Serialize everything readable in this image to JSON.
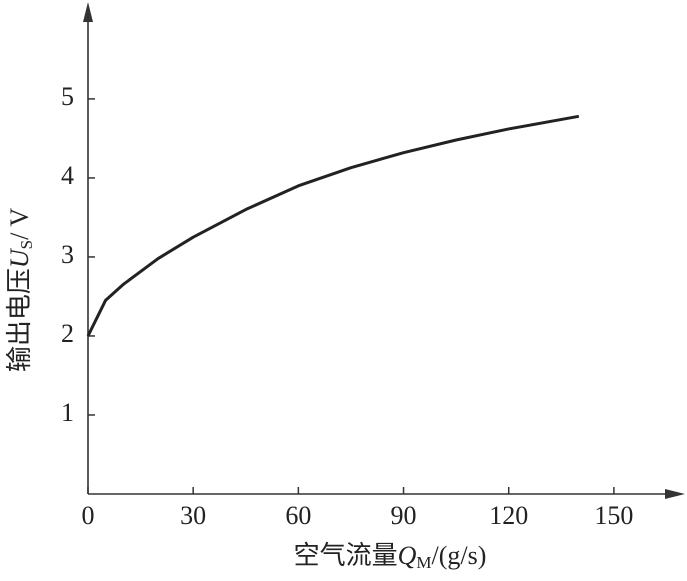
{
  "chart_data": {
    "type": "line",
    "xlabel": {
      "text": "空气流量",
      "symbol": "Q",
      "subscript": "M",
      "unit": "/(g/s)"
    },
    "ylabel": {
      "text": "输出电压",
      "symbol": "U",
      "subscript": "S",
      "unit": "/ V"
    },
    "x": [
      0,
      5,
      10,
      20,
      30,
      45,
      60,
      75,
      90,
      105,
      120,
      140
    ],
    "values": [
      2.0,
      2.45,
      2.65,
      2.98,
      3.25,
      3.6,
      3.9,
      4.13,
      4.32,
      4.48,
      4.62,
      4.78
    ],
    "color": "#222222",
    "xlim": [
      0,
      168
    ],
    "ylim": [
      0,
      6.1
    ],
    "xticks": [
      0,
      30,
      60,
      90,
      120,
      150
    ],
    "yticks": [
      1,
      2,
      3,
      4,
      5
    ]
  }
}
